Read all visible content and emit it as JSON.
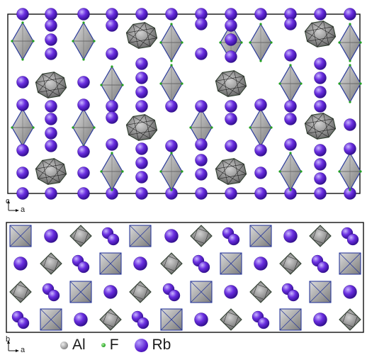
{
  "colors": {
    "rb": "#5a1fd0",
    "al": "#9a9a9a",
    "f": "#22a020",
    "polyhedron_edge": "#2a3a9a"
  },
  "views": [
    {
      "id": "top-view",
      "axis_vertical": "c",
      "axis_horizontal": "a"
    },
    {
      "id": "bottom-view",
      "axis_vertical": "b",
      "axis_horizontal": "a"
    }
  ],
  "legend": [
    {
      "label": "Al",
      "icon": "al-atom-icon"
    },
    {
      "label": "F",
      "icon": "f-atom-icon"
    },
    {
      "label": "Rb",
      "icon": "rb-atom-icon"
    }
  ]
}
